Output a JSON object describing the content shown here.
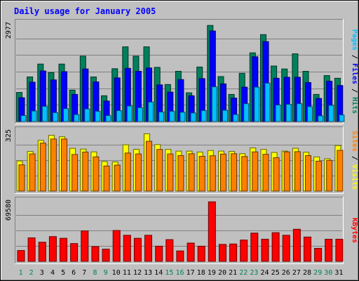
{
  "chart_data": [
    {
      "type": "bar",
      "title": "Daily usage for January 2005",
      "panel": "hits-files-pages",
      "categories": [
        "1",
        "2",
        "3",
        "4",
        "5",
        "6",
        "7",
        "8",
        "9",
        "10",
        "11",
        "12",
        "13",
        "14",
        "15",
        "16",
        "17",
        "18",
        "19",
        "20",
        "21",
        "22",
        "23",
        "24",
        "25",
        "26",
        "27",
        "28",
        "29",
        "30",
        "31"
      ],
      "weekend_days": [
        "1",
        "2",
        "8",
        "9",
        "15",
        "16",
        "22",
        "23",
        "29",
        "30"
      ],
      "ymax_label": "2977",
      "ylim": [
        0,
        2977
      ],
      "legend": [
        {
          "name": "Hits",
          "color": "#00805c"
        },
        {
          "name": "Files",
          "color": "#0000ff"
        },
        {
          "name": "Pages",
          "color": "#00c0ff"
        }
      ],
      "legend_separator": " / ",
      "series": [
        {
          "name": "Hits",
          "color": "#00805c",
          "values": [
            880,
            1350,
            1740,
            1480,
            1740,
            950,
            1980,
            1350,
            780,
            1600,
            2260,
            1980,
            2260,
            1640,
            1120,
            1520,
            870,
            1650,
            2910,
            1360,
            820,
            1460,
            2080,
            2630,
            1680,
            1590,
            2050,
            1520,
            820,
            1390,
            1310
          ]
        },
        {
          "name": "Files",
          "color": "#0000ff",
          "values": [
            720,
            1190,
            1530,
            1260,
            1510,
            820,
            1590,
            1200,
            620,
            1320,
            1610,
            1520,
            1620,
            1110,
            890,
            1270,
            780,
            1300,
            2740,
            1140,
            710,
            1040,
            1960,
            2420,
            1310,
            1340,
            1340,
            1180,
            700,
            1220,
            1090
          ]
        },
        {
          "name": "Pages",
          "color": "#00c0ff",
          "values": [
            180,
            320,
            460,
            270,
            390,
            210,
            380,
            310,
            180,
            330,
            470,
            420,
            590,
            290,
            310,
            280,
            260,
            330,
            1050,
            340,
            210,
            540,
            1040,
            1160,
            500,
            520,
            540,
            450,
            170,
            490,
            200
          ]
        }
      ]
    },
    {
      "type": "bar",
      "panel": "visits-sites",
      "categories": [
        "1",
        "2",
        "3",
        "4",
        "5",
        "6",
        "7",
        "8",
        "9",
        "10",
        "11",
        "12",
        "13",
        "14",
        "15",
        "16",
        "17",
        "18",
        "19",
        "20",
        "21",
        "22",
        "23",
        "24",
        "25",
        "26",
        "27",
        "28",
        "29",
        "30",
        "31"
      ],
      "ymax_label": "325",
      "ylim": [
        0,
        325
      ],
      "legend": [
        {
          "name": "Visits",
          "color": "#ffff00"
        },
        {
          "name": "Sites",
          "color": "#ff8000"
        }
      ],
      "legend_separator": " / ",
      "series": [
        {
          "name": "Visits",
          "color": "#ffff00",
          "values": [
            162,
            213,
            273,
            300,
            292,
            230,
            226,
            211,
            159,
            157,
            249,
            225,
            308,
            250,
            224,
            215,
            215,
            210,
            218,
            215,
            213,
            201,
            232,
            224,
            208,
            215,
            230,
            209,
            184,
            174,
            245
          ]
        },
        {
          "name": "Sites",
          "color": "#ff8000",
          "values": [
            141,
            200,
            258,
            280,
            280,
            197,
            210,
            184,
            135,
            140,
            205,
            200,
            268,
            224,
            200,
            191,
            201,
            187,
            190,
            199,
            201,
            186,
            211,
            198,
            180,
            211,
            212,
            191,
            161,
            165,
            219
          ]
        }
      ]
    },
    {
      "type": "bar",
      "panel": "kbytes",
      "categories": [
        "1",
        "2",
        "3",
        "4",
        "5",
        "6",
        "7",
        "8",
        "9",
        "10",
        "11",
        "12",
        "13",
        "14",
        "15",
        "16",
        "17",
        "18",
        "19",
        "20",
        "21",
        "22",
        "23",
        "24",
        "25",
        "26",
        "27",
        "28",
        "29",
        "30",
        "31"
      ],
      "ymax_label": "69580",
      "ylim": [
        0,
        69580
      ],
      "legend": [
        {
          "name": "KBytes",
          "color": "#ff0000"
        }
      ],
      "series": [
        {
          "name": "KBytes",
          "color": "#ff0000",
          "values": [
            12500,
            27000,
            22000,
            28500,
            26500,
            20500,
            35000,
            17000,
            14000,
            35500,
            30000,
            26500,
            30000,
            17500,
            25000,
            12000,
            21000,
            17500,
            68500,
            19500,
            20000,
            24500,
            32500,
            25500,
            33000,
            30000,
            37000,
            28000,
            15000,
            25500,
            25500
          ]
        }
      ]
    }
  ]
}
